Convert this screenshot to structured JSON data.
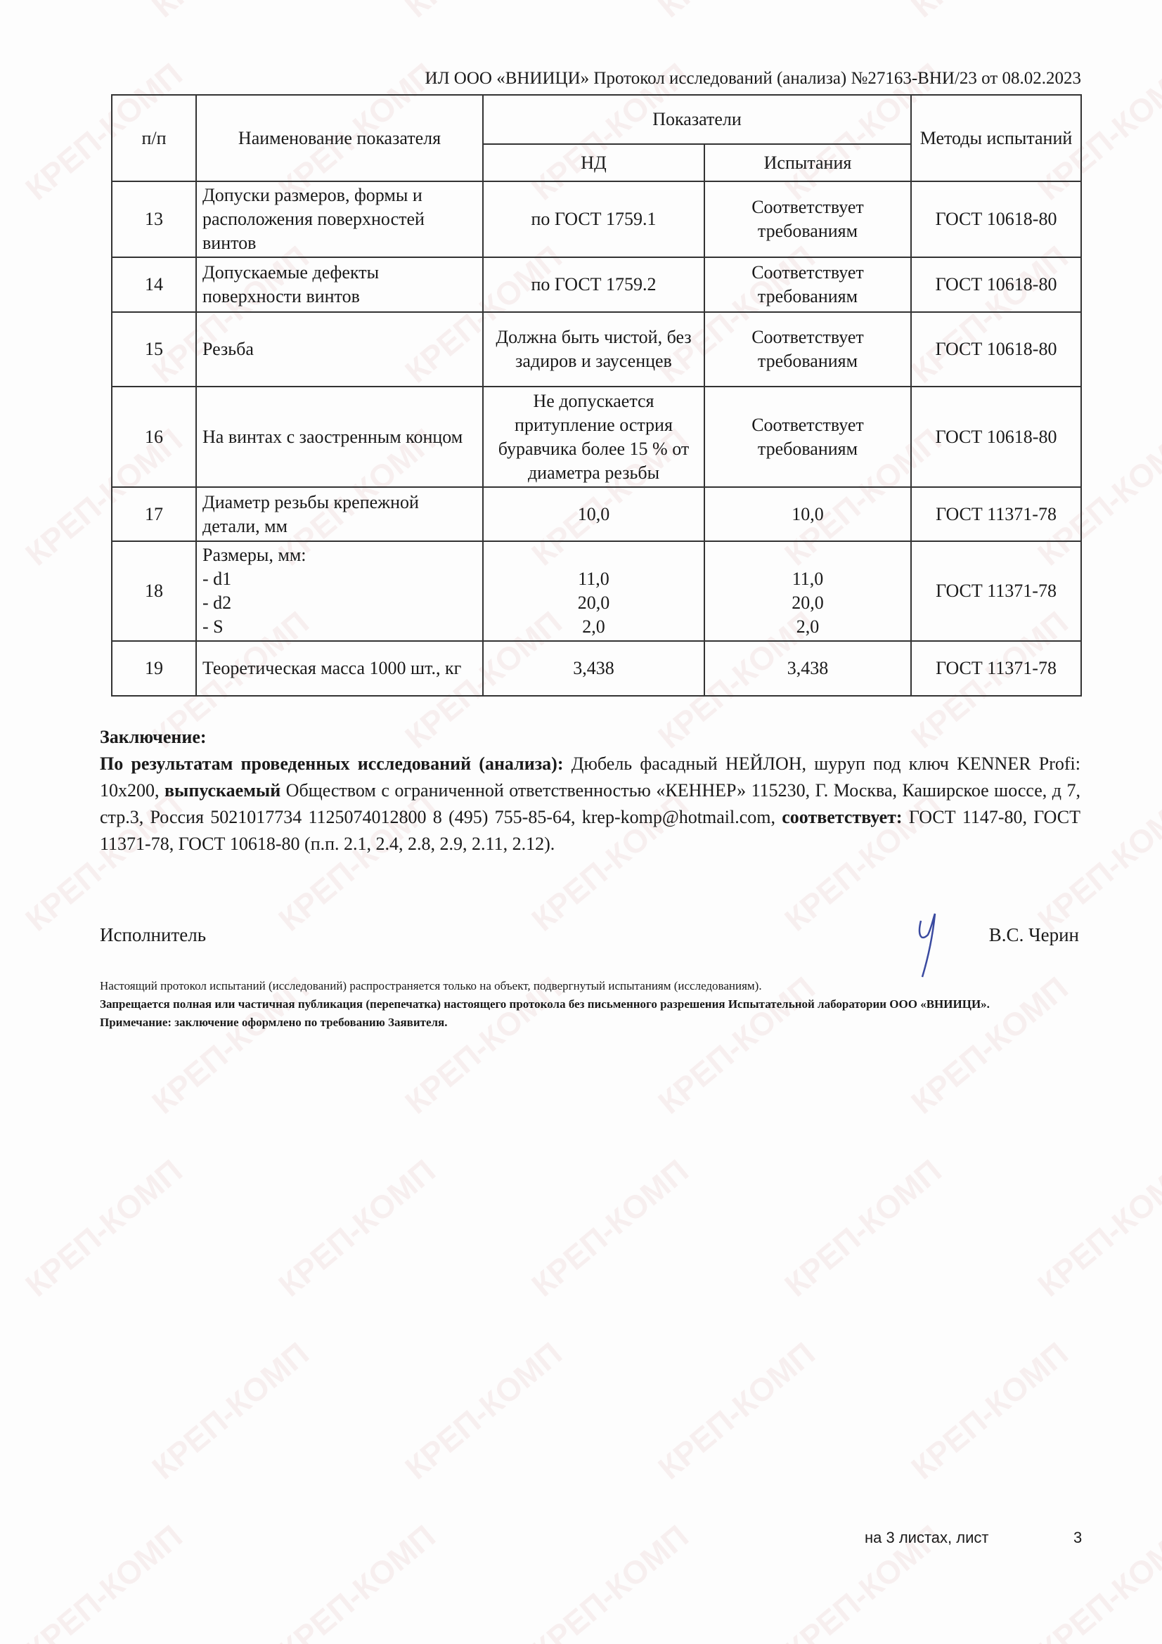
{
  "watermark": "КРЕП-КОМП",
  "header": "ИЛ ООО «ВНИИЦИ» Протокол исследований (анализа)  №27163-ВНИ/23 от  08.02.2023",
  "table": {
    "headers": {
      "num": "п/п",
      "name": "Наименование показателя",
      "indicators": "Показатели",
      "nd": "НД",
      "tests": "Испытания",
      "methods": "Методы испытаний"
    },
    "rows": [
      {
        "num": "13",
        "name": "Допуски размеров, формы и расположения поверхностей винтов",
        "nd": "по ГОСТ 1759.1",
        "test": "Соответствует требованиям",
        "method": "ГОСТ 10618-80"
      },
      {
        "num": "14",
        "name": "Допускаемые дефекты поверхности винтов",
        "nd": "по ГОСТ 1759.2",
        "test": "Соответствует требованиям",
        "method": "ГОСТ 10618-80"
      },
      {
        "num": "15",
        "name": "Резьба",
        "nd": "Должна быть чистой, без задиров и заусенцев",
        "test": "Соответствует требованиям",
        "method": "ГОСТ 10618-80"
      },
      {
        "num": "16",
        "name": "На винтах с заостренным концом",
        "nd": "Не допускается притупление острия буравчика более 15 % от диаметра резьбы",
        "test": "Соответствует требованиям",
        "method": "ГОСТ 10618-80"
      },
      {
        "num": "17",
        "name": "Диаметр резьбы крепежной детали, мм",
        "nd": "10,0",
        "test": "10,0",
        "method": "ГОСТ 11371-78"
      },
      {
        "num": "18",
        "name": "Размеры, мм:",
        "sub": [
          "- d1",
          "- d2",
          "- S"
        ],
        "nd": [
          "11,0",
          "20,0",
          "2,0"
        ],
        "test": [
          "11,0",
          "20,0",
          "2,0"
        ],
        "method": "ГОСТ 11371-78"
      },
      {
        "num": "19",
        "name": "Теоретическая масса 1000 шт., кг",
        "nd": "3,438",
        "test": "3,438",
        "method": "ГОСТ 11371-78"
      }
    ]
  },
  "conclusion": {
    "title": "Заключение:",
    "lead": "По результатам проведенных исследований (анализа):",
    "text1": " Дюбель фасадный НЕЙЛОН, шуруп под ключ KENNER Profi: 10x200, ",
    "bold2": "выпускаемый",
    "text2": " Обществом с ограниченной ответственностью «КЕННЕР» 115230, Г. Москва, Каширское шоссе, д 7, стр.3, Россия 5021017734 1125074012800 8 (495) 755-85-64, krep-komp@hotmail.com, ",
    "bold3": "соответствует:",
    "text3": " ГОСТ 1147-80, ГОСТ 11371-78, ГОСТ 10618-80 (п.п. 2.1, 2.4, 2.8, 2.9, 2.11, 2.12)."
  },
  "executor": {
    "label": "Исполнитель",
    "name": "В.С. Черин"
  },
  "notes": {
    "n1": "Настоящий протокол испытаний (исследований) распространяется только на объект, подвергнутый испытаниям (исследованиям).",
    "n2": "Запрещается полная или частичная публикация (перепечатка) настоящего протокола без письменного разрешения Испытательной лаборатории  ООО «ВНИИЦИ».",
    "n3": "Примечание: заключение оформлено по требованию Заявителя."
  },
  "footer": {
    "sheets": "на 3  листах, лист",
    "page": "3"
  }
}
